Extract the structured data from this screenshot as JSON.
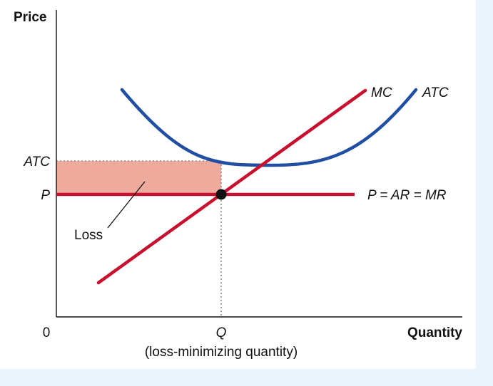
{
  "chart_data": {
    "type": "line",
    "ylabel": "Price",
    "xlabel": "Quantity",
    "origin_label": "0",
    "x_ticks": [
      {
        "label": "Q",
        "note": "(loss-minimizing quantity)"
      }
    ],
    "y_ticks": [
      {
        "label": "ATC"
      },
      {
        "label": "P"
      }
    ],
    "curves": [
      {
        "name": "MC",
        "color": "#c8102e"
      },
      {
        "name": "ATC",
        "color": "#1f4ea3"
      },
      {
        "name": "P = AR = MR",
        "color": "#c8102e"
      }
    ],
    "annotations": [
      {
        "text": "Loss",
        "fill": "#eeaa9d"
      }
    ],
    "point_marker": {
      "color": "#111111"
    },
    "grid": false,
    "background_band": "#ecf4fb"
  }
}
